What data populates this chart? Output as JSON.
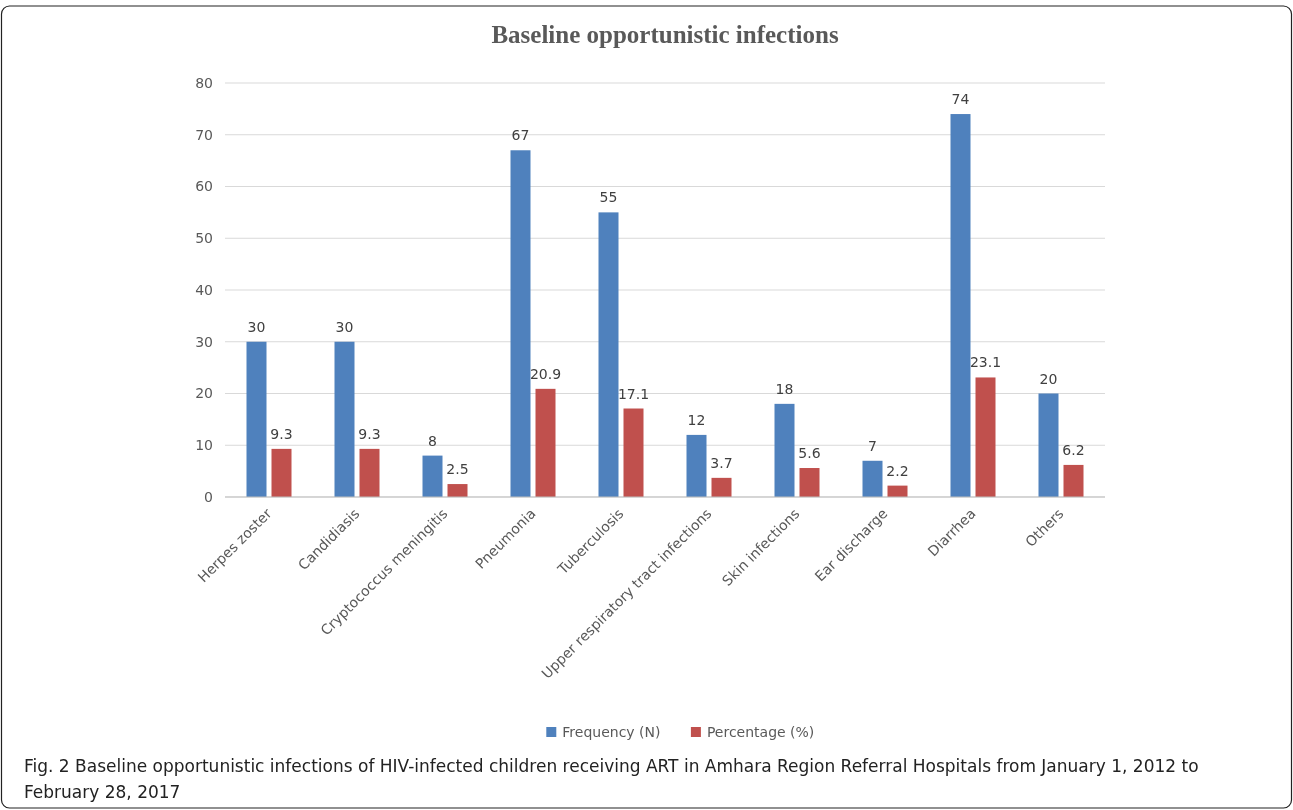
{
  "chart_data": {
    "type": "bar",
    "title": "Baseline opportunistic infections",
    "categories": [
      "Herpes zoster",
      "Candidiasis",
      "Cryptococcus meningitis",
      "Pneumonia",
      "Tuberculosis",
      "Upper respiratory tract infections",
      "Skin infections",
      "Ear discharge",
      "Diarrhea",
      "Others"
    ],
    "series": [
      {
        "name": "Frequency (N)",
        "color": "#4f81bd",
        "values": [
          30,
          30,
          8,
          67,
          55,
          12,
          18,
          7,
          74,
          20
        ]
      },
      {
        "name": "Percentage (%)",
        "color": "#c0504d",
        "values": [
          9.3,
          9.3,
          2.5,
          20.9,
          17.1,
          3.7,
          5.6,
          2.2,
          23.1,
          6.2
        ]
      }
    ],
    "ylim": [
      0,
      80
    ],
    "yticks": [
      0,
      10,
      20,
      30,
      40,
      50,
      60,
      70,
      80
    ],
    "grid": "y",
    "legend": "bottom",
    "data_labels": true,
    "annotations": [
      "Fig. 2 Baseline opportunistic infections of HIV-infected children receiving ART in Amhara Region Referral Hospitals from January 1, 2012 to February 28, 2017"
    ]
  }
}
